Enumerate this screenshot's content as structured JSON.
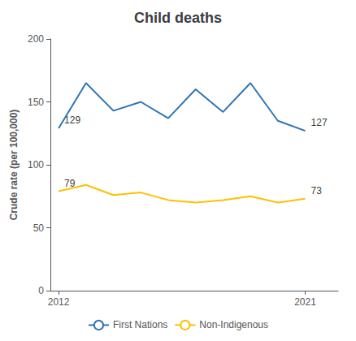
{
  "chart_data": {
    "type": "line",
    "title": "Child deaths",
    "ylabel": "Crude rate (per 100,000)",
    "x": [
      2012,
      2013,
      2014,
      2015,
      2016,
      2017,
      2018,
      2019,
      2020,
      2021
    ],
    "series": [
      {
        "name": "First Nations",
        "color": "#2E75B6",
        "values": [
          129,
          165,
          143,
          150,
          137,
          160,
          142,
          165,
          135,
          127
        ]
      },
      {
        "name": "Non-Indigenous",
        "color": "#FFC000",
        "values": [
          79,
          84,
          76,
          78,
          72,
          70,
          72,
          75,
          70,
          73
        ]
      }
    ],
    "xlim": [
      2011.7,
      2022.2
    ],
    "xticks": [
      2012,
      2021
    ],
    "ylim": [
      0,
      200
    ],
    "yticks": [
      0,
      50,
      100,
      150,
      200
    ],
    "grid": false,
    "legend": "bottom",
    "annotations": [
      {
        "text": "129",
        "x": 2012,
        "y": 129
      },
      {
        "text": "79",
        "x": 2012,
        "y": 79
      },
      {
        "text": "127",
        "x": 2021,
        "y": 127
      },
      {
        "text": "73",
        "x": 2021,
        "y": 73
      }
    ]
  }
}
